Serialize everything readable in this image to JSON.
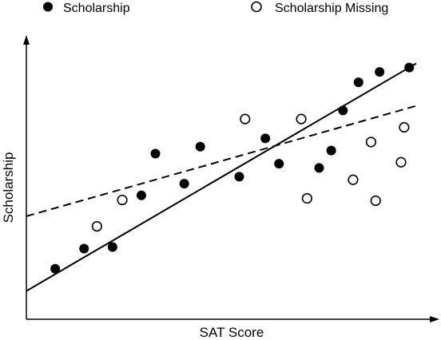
{
  "chart_data": {
    "type": "scatter",
    "title": "",
    "xlabel": "SAT Score",
    "ylabel": "Scholarship",
    "xlim": [
      0,
      100
    ],
    "ylim": [
      0,
      100
    ],
    "grid": false,
    "axis_ticks": false,
    "legend": {
      "placement": "top",
      "orientation": "horizontal"
    },
    "series": [
      {
        "name": "Scholarship",
        "marker": "filled-circle",
        "color": "#000000",
        "points": [
          {
            "x": 7.4,
            "y": 14.9
          },
          {
            "x": 14.8,
            "y": 22.7
          },
          {
            "x": 22.1,
            "y": 23.3
          },
          {
            "x": 29.5,
            "y": 43.3
          },
          {
            "x": 33.1,
            "y": 59.4
          },
          {
            "x": 40.5,
            "y": 47.8
          },
          {
            "x": 44.6,
            "y": 62.1
          },
          {
            "x": 54.6,
            "y": 50.5
          },
          {
            "x": 61.3,
            "y": 65.3
          },
          {
            "x": 64.8,
            "y": 55.5
          },
          {
            "x": 75.1,
            "y": 53.9
          },
          {
            "x": 78.2,
            "y": 60.6
          },
          {
            "x": 81.2,
            "y": 76.1
          },
          {
            "x": 85.2,
            "y": 87.0
          },
          {
            "x": 90.6,
            "y": 91.0
          },
          {
            "x": 98.2,
            "y": 92.7
          }
        ]
      },
      {
        "name": "Scholarship Missing",
        "marker": "open-circle",
        "color": "#000000",
        "points": [
          {
            "x": 18.1,
            "y": 31.3
          },
          {
            "x": 24.6,
            "y": 41.5
          },
          {
            "x": 56.1,
            "y": 72.8
          },
          {
            "x": 70.5,
            "y": 72.8
          },
          {
            "x": 72.0,
            "y": 42.1
          },
          {
            "x": 83.8,
            "y": 49.3
          },
          {
            "x": 88.4,
            "y": 63.9
          },
          {
            "x": 89.6,
            "y": 41.2
          },
          {
            "x": 96.1,
            "y": 56.1
          },
          {
            "x": 96.9,
            "y": 69.6
          }
        ]
      }
    ],
    "lines": [
      {
        "style": "solid",
        "from": [
          0,
          6.3
        ],
        "to": [
          100,
          94.3
        ]
      },
      {
        "style": "dashed",
        "from": [
          0,
          35.2
        ],
        "to": [
          100,
          77.9
        ]
      }
    ]
  }
}
